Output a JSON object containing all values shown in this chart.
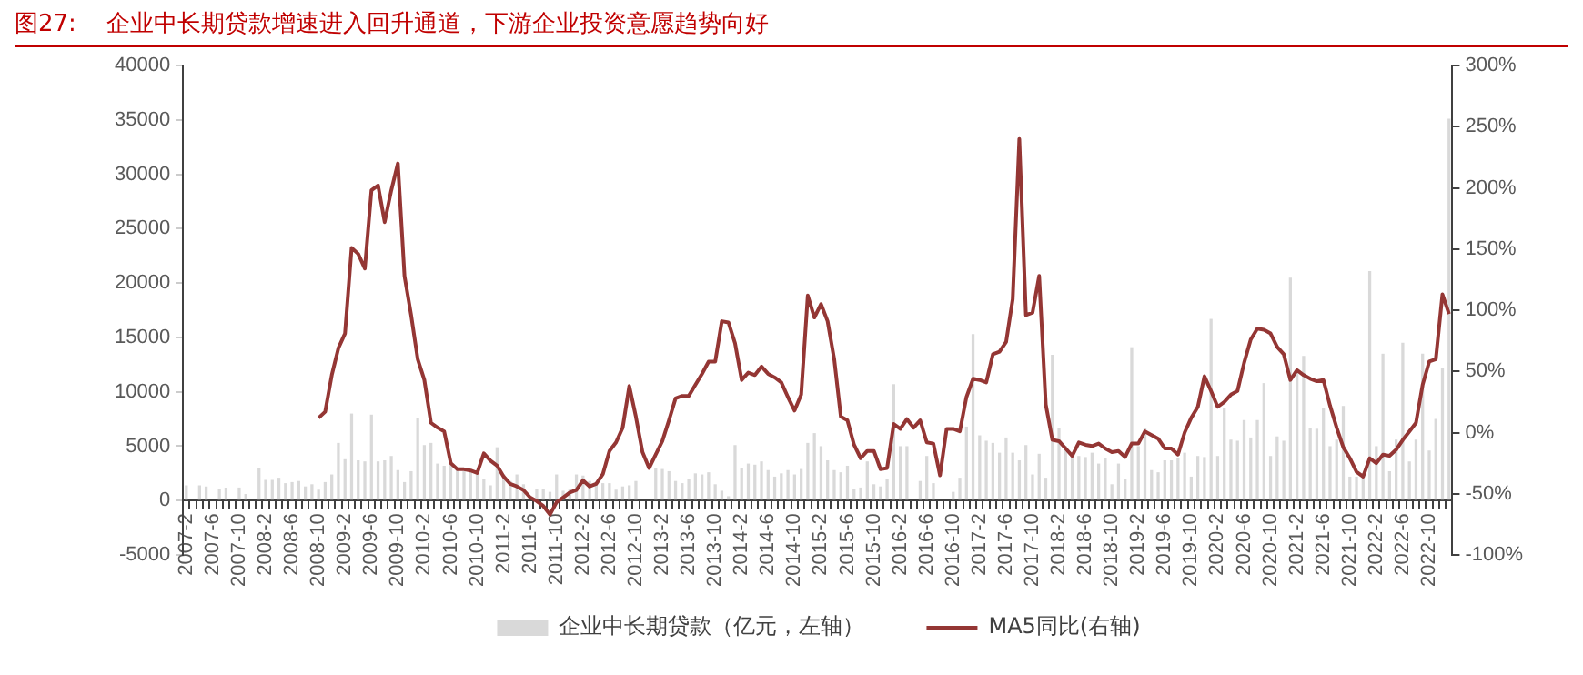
{
  "chart_data": {
    "type": "bar",
    "title": "图27:    企业中长期贷款增速进入回升通道，下游企业投资意愿趋势向好",
    "categories": [
      "2007-2",
      null,
      null,
      null,
      "2007-6",
      null,
      null,
      null,
      "2007-10",
      null,
      null,
      null,
      "2008-2",
      null,
      null,
      null,
      "2008-6",
      null,
      null,
      null,
      "2008-10",
      null,
      null,
      null,
      "2009-2",
      null,
      null,
      null,
      "2009-6",
      null,
      null,
      null,
      "2009-10",
      null,
      null,
      null,
      "2010-2",
      null,
      null,
      null,
      "2010-6",
      null,
      null,
      null,
      "2010-10",
      null,
      null,
      null,
      "2011-2",
      null,
      null,
      null,
      "2011-6",
      null,
      null,
      null,
      "2011-10",
      null,
      null,
      null,
      "2012-2",
      null,
      null,
      null,
      "2012-6",
      null,
      null,
      null,
      "2012-10",
      null,
      null,
      null,
      "2013-2",
      null,
      null,
      null,
      "2013-6",
      null,
      null,
      null,
      "2013-10",
      null,
      null,
      null,
      "2014-2",
      null,
      null,
      null,
      "2014-6",
      null,
      null,
      null,
      "2014-10",
      null,
      null,
      null,
      "2015-2",
      null,
      null,
      null,
      "2015-6",
      null,
      null,
      null,
      "2015-10",
      null,
      null,
      null,
      "2016-2",
      null,
      null,
      null,
      "2016-6",
      null,
      null,
      null,
      "2016-10",
      null,
      null,
      null,
      "2017-2",
      null,
      null,
      null,
      "2017-6",
      null,
      null,
      null,
      "2017-10",
      null,
      null,
      null,
      "2018-2",
      null,
      null,
      null,
      "2018-6",
      null,
      null,
      null,
      "2018-10",
      null,
      null,
      null,
      "2019-2",
      null,
      null,
      null,
      "2019-6",
      null,
      null,
      null,
      "2019-10",
      null,
      null,
      null,
      "2020-2",
      null,
      null,
      null,
      "2020-6",
      null,
      null,
      null,
      "2020-10",
      null,
      null,
      null,
      "2021-2",
      null,
      null,
      null,
      "2021-6",
      null,
      null,
      null,
      "2021-10",
      null,
      null,
      null,
      "2022-2",
      null,
      null,
      null,
      "2022-6",
      null,
      null,
      null,
      "2022-10",
      null,
      null,
      null
    ],
    "series": [
      {
        "name": "企业中长期贷款（亿元，左轴）",
        "color": "#d9d9d9",
        "values": [
          1400,
          0,
          1400,
          1300,
          0,
          1100,
          1200,
          0,
          1200,
          600,
          0,
          3000,
          1900,
          1900,
          2100,
          1600,
          1700,
          1800,
          1300,
          1500,
          1000,
          1700,
          2400,
          5300,
          3800,
          8000,
          3700,
          3600,
          7900,
          3600,
          3700,
          4100,
          2800,
          1700,
          2700,
          7600,
          5100,
          5300,
          3400,
          3200,
          3500,
          2900,
          2700,
          2800,
          2600,
          2000,
          1400,
          4900,
          2400,
          1800,
          2400,
          1500,
          null,
          1100,
          1100,
          800,
          2400,
          900,
          1000,
          2400,
          2300,
          1800,
          1500,
          1600,
          1600,
          1000,
          1300,
          1400,
          1800,
          0,
          null,
          3000,
          2900,
          2700,
          1800,
          1600,
          2000,
          2500,
          2400,
          2600,
          1500,
          900,
          400,
          5100,
          3000,
          3400,
          3300,
          3600,
          2800,
          2200,
          2500,
          2800,
          2400,
          2900,
          5300,
          6200,
          5000,
          3700,
          2800,
          2600,
          3200,
          1100,
          1200,
          3600,
          1500,
          1300,
          2000,
          10700,
          5000,
          5000,
          0,
          1800,
          4100,
          1600,
          0,
          0,
          800,
          2100,
          6800,
          15300,
          6000,
          5500,
          5300,
          4400,
          5800,
          4400,
          3700,
          5100,
          2400,
          4300,
          2100,
          13400,
          6700,
          5000,
          4100,
          4100,
          4000,
          4400,
          3400,
          3900,
          1500,
          3400,
          2000,
          14100,
          5000,
          6700,
          2800,
          2600,
          3700,
          3700,
          3900,
          4400,
          2200,
          4100,
          4000,
          16700,
          4100,
          8500,
          5600,
          5500,
          7400,
          5800,
          7400,
          10800,
          4100,
          5900,
          5500,
          20500,
          11800,
          13300,
          6700,
          6600,
          8500,
          5000,
          5600,
          8700,
          2200,
          2200,
          2200,
          21100,
          5000,
          13500,
          2700,
          5600,
          14500,
          3600,
          5600,
          13500,
          4600,
          7500,
          12200,
          35100
        ]
      },
      {
        "name": "MA5同比(右轴)",
        "type": "line",
        "axis": "y2",
        "color": "#943634",
        "values": [
          null,
          null,
          null,
          null,
          null,
          null,
          null,
          null,
          null,
          null,
          null,
          null,
          null,
          null,
          null,
          null,
          null,
          null,
          null,
          null,
          12,
          17,
          47,
          69,
          81,
          151,
          146,
          134,
          198,
          202,
          172,
          198,
          220,
          128,
          96,
          60,
          43,
          8,
          4,
          1,
          -25,
          -30,
          -30,
          -31,
          -33,
          -17,
          -23,
          -27,
          -36,
          -42,
          -44,
          -47,
          -53,
          -56,
          -60,
          -67,
          -57,
          -53,
          -49,
          -47,
          -39,
          -44,
          -42,
          -34,
          -15,
          -8,
          4,
          38,
          13,
          -16,
          -29,
          -18,
          -7,
          10,
          28,
          30,
          30,
          39,
          48,
          58,
          58,
          91,
          90,
          73,
          43,
          49,
          47,
          54,
          48,
          45,
          41,
          29,
          18,
          31,
          112,
          94,
          105,
          91,
          60,
          13,
          10,
          -10,
          -21,
          -15,
          -15,
          -30,
          -29,
          7,
          3,
          11,
          4,
          10,
          -8,
          -9,
          -35,
          3,
          3,
          1,
          29,
          44,
          43,
          41,
          64,
          66,
          74,
          109,
          240,
          96,
          98,
          128,
          23,
          -6,
          -7,
          -13,
          -19,
          -8,
          -10,
          -11,
          -9,
          -13,
          -16,
          -15,
          -20,
          -9,
          -9,
          1,
          -2,
          -5,
          -13,
          -13,
          -18,
          0,
          12,
          21,
          46,
          34,
          21,
          25,
          31,
          34,
          57,
          76,
          85,
          84,
          81,
          70,
          64,
          43,
          51,
          47,
          44,
          42,
          43,
          22,
          4,
          -12,
          -21,
          -32,
          -36,
          -21,
          -25,
          -18,
          -19,
          -14,
          -6,
          1,
          8,
          39,
          58,
          60,
          113,
          97
        ]
      }
    ],
    "ylim": [
      -5000,
      40000
    ],
    "yticks": [
      -5000,
      0,
      5000,
      10000,
      15000,
      20000,
      25000,
      30000,
      35000,
      40000
    ],
    "y2lim": [
      -100,
      300
    ],
    "y2ticks": [
      {
        "value": -100,
        "label": "-100%"
      },
      {
        "value": -50,
        "label": "-50%"
      },
      {
        "value": 0,
        "label": "0%"
      },
      {
        "value": 50,
        "label": "50%"
      },
      {
        "value": 100,
        "label": "100%"
      },
      {
        "value": 150,
        "label": "150%"
      },
      {
        "value": 200,
        "label": "200%"
      },
      {
        "value": 250,
        "label": "250%"
      },
      {
        "value": 300,
        "label": "300%"
      }
    ],
    "grid": false,
    "legend": "bottom",
    "marker": "none",
    "line_style": "solid"
  }
}
